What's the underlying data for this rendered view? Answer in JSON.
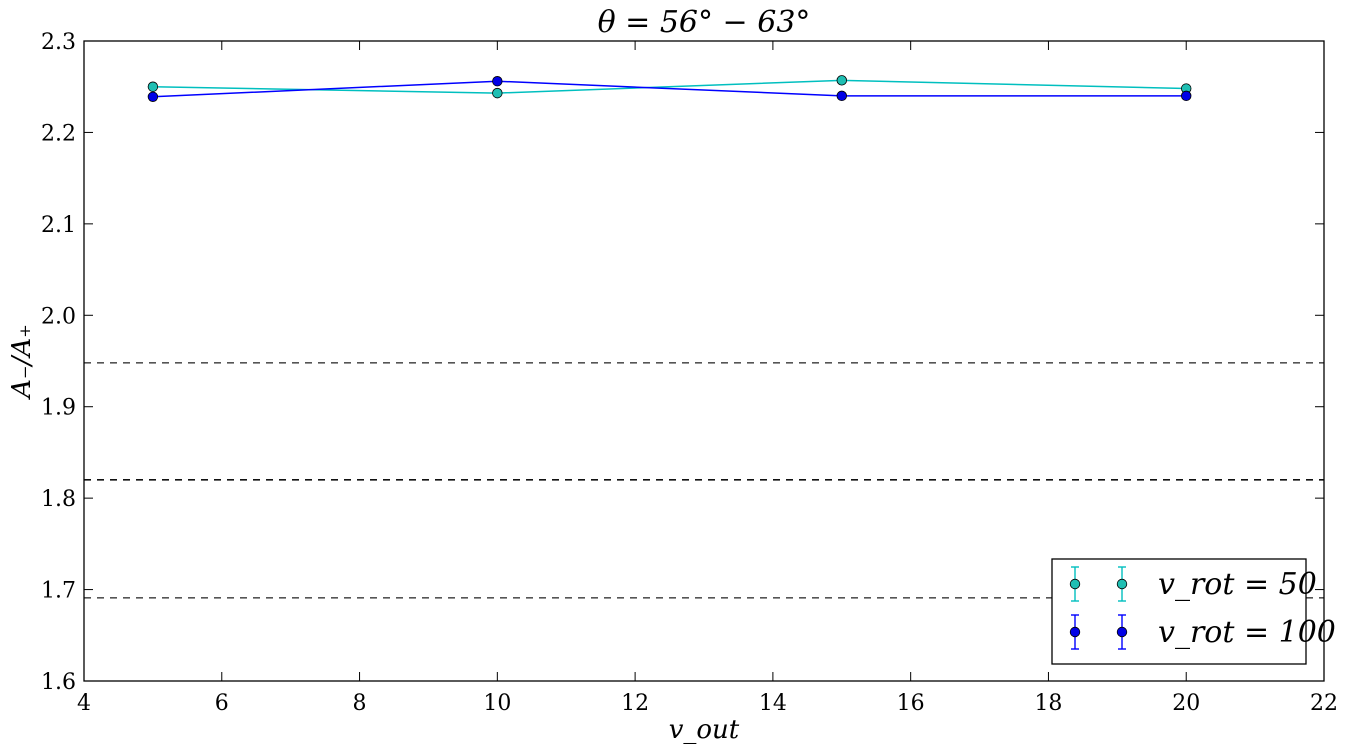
{
  "chart_data": {
    "type": "line",
    "title": "θ = 56° − 63°",
    "xlabel": "v_out",
    "ylabel": "A₋/A₊",
    "xlim": [
      4,
      22
    ],
    "ylim": [
      1.6,
      2.3
    ],
    "xticks": [
      "4",
      "6",
      "8",
      "10",
      "12",
      "14",
      "16",
      "18",
      "20",
      "22"
    ],
    "yticks": [
      "1.6",
      "1.7",
      "1.8",
      "1.9",
      "2.0",
      "2.1",
      "2.2",
      "2.3"
    ],
    "grid": false,
    "legend_position": "lower-right",
    "series": [
      {
        "name": "v_rot = 50",
        "color": "#00bfbf",
        "marker_color": "#1fbfb3",
        "x": [
          5,
          10,
          15,
          20
        ],
        "y": [
          2.25,
          2.243,
          2.257,
          2.248
        ],
        "yerr": [
          0.002,
          0.002,
          0.002,
          0.002
        ]
      },
      {
        "name": "v_rot = 100",
        "color": "#0000ff",
        "marker_color": "#0000e6",
        "x": [
          5,
          10,
          15,
          20
        ],
        "y": [
          2.239,
          2.256,
          2.24,
          2.24
        ],
        "yerr": [
          0.002,
          0.002,
          0.002,
          0.002
        ]
      }
    ],
    "reference_lines": [
      {
        "y": 1.948,
        "style": "dashed",
        "color": "#555555"
      },
      {
        "y": 1.82,
        "style": "dashed",
        "color": "#111111"
      },
      {
        "y": 1.691,
        "style": "dashed",
        "color": "#555555"
      }
    ]
  }
}
